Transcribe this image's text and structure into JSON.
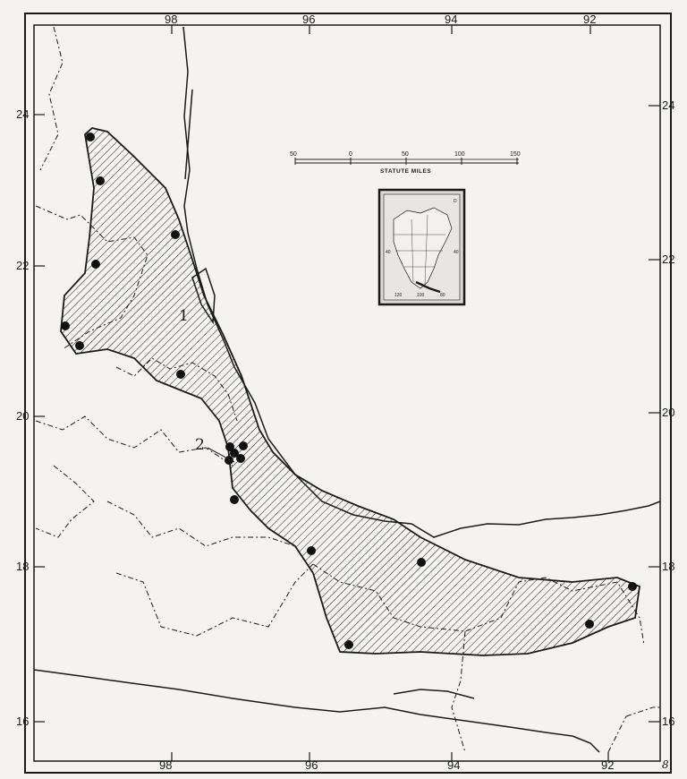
{
  "map": {
    "longitude_labels_top": [
      "98",
      "96",
      "94",
      "92"
    ],
    "longitude_labels_bottom": [
      "98",
      "96",
      "94",
      "92"
    ],
    "latitude_labels_left": [
      "24",
      "22",
      "20",
      "18",
      "16"
    ],
    "latitude_labels_right": [
      "24",
      "22",
      "20",
      "18",
      "16"
    ],
    "range_labels": [
      "1",
      "2"
    ],
    "corner_mark": "8",
    "scale_bar": {
      "title": "STATUTE MILES",
      "ticks": [
        "50",
        "0",
        "50",
        "100",
        "150"
      ]
    },
    "inset": {
      "labels": [
        "D",
        "40",
        "40",
        "120",
        "100",
        "80"
      ]
    },
    "colors": {
      "ink": "#1a1a1a",
      "paper": "#f4f3f0"
    }
  }
}
